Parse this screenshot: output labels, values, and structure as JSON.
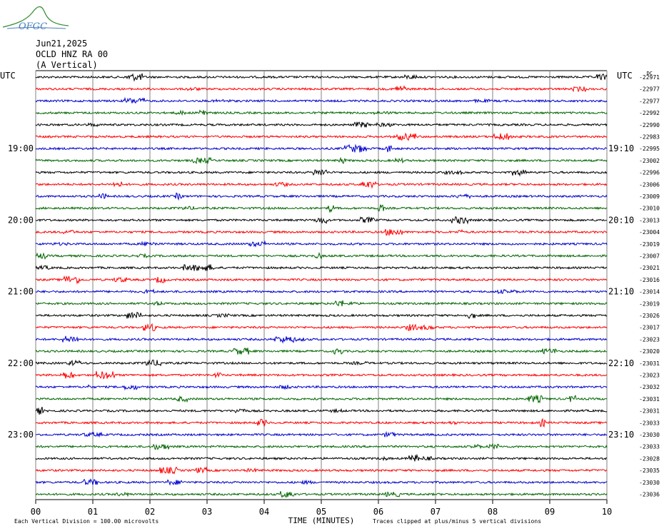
{
  "header": {
    "logo_text": "OFGC",
    "date": "Jun21,2025",
    "station": "OCLD HNZ RA 00",
    "component": "(A Vertical)"
  },
  "chart_data": {
    "type": "line",
    "title": "",
    "xlabel": "TIME (MINUTES)",
    "x_ticks": [
      "00",
      "01",
      "02",
      "03",
      "04",
      "05",
      "06",
      "07",
      "08",
      "09",
      "10"
    ],
    "xlim": [
      0,
      10
    ],
    "left_axis_label": "UTC",
    "right_axis_label": "UTC",
    "dc_label": "DC",
    "left_hour_labels": [
      {
        "row": 6,
        "label": "19:00"
      },
      {
        "row": 12,
        "label": "20:00"
      },
      {
        "row": 18,
        "label": "21:00"
      },
      {
        "row": 24,
        "label": "22:00"
      },
      {
        "row": 30,
        "label": "23:00"
      }
    ],
    "right_hour_labels": [
      {
        "row": 6,
        "label": "19:10"
      },
      {
        "row": 12,
        "label": "20:10"
      },
      {
        "row": 18,
        "label": "21:10"
      },
      {
        "row": 24,
        "label": "22:10"
      },
      {
        "row": 30,
        "label": "23:10"
      }
    ],
    "trace_colors": [
      "#000000",
      "#ff0000",
      "#0000cc",
      "#006600"
    ],
    "dc_offsets": [
      -22971,
      -22977,
      -22977,
      -22992,
      -22990,
      -22983,
      -22995,
      -23002,
      -22996,
      -23006,
      -23009,
      -23010,
      -23013,
      -23004,
      -23019,
      -23007,
      -23021,
      -23016,
      -23014,
      -23019,
      -23026,
      -23017,
      -23023,
      -23020,
      -23031,
      -23023,
      -23032,
      -23031,
      -23031,
      -23033,
      -23030,
      -23033,
      -23028,
      -23035,
      -23030,
      -23036
    ],
    "footer_left": "Each Vertical Division =  100.00 microvolts",
    "footer_right": "Traces clipped at plus/minus 5 vertical divisions"
  }
}
